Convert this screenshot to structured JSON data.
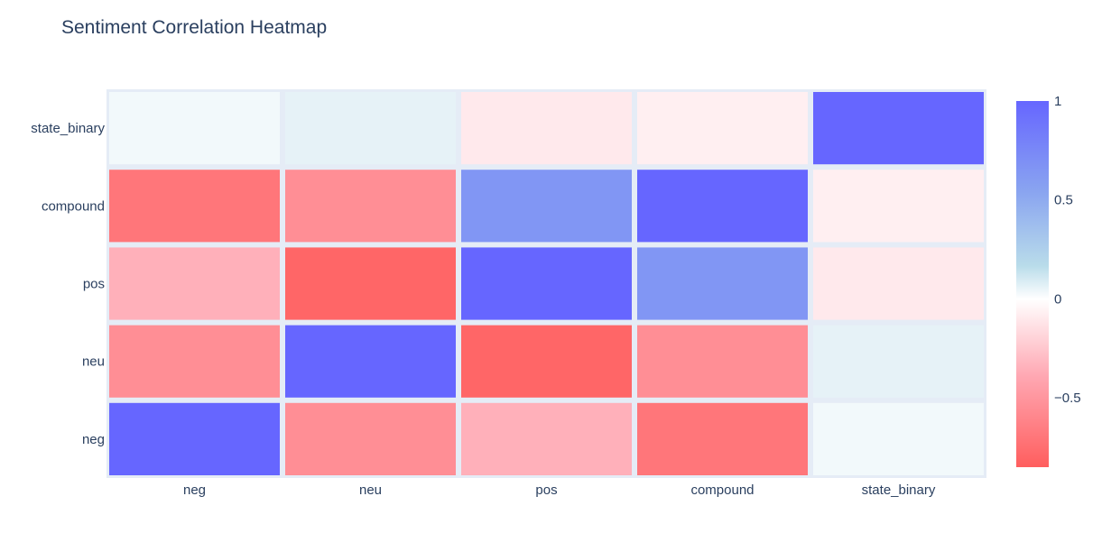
{
  "chart_data": {
    "type": "heatmap",
    "title": "Sentiment Correlation Heatmap",
    "x_categories": [
      "neg",
      "neu",
      "pos",
      "compound",
      "state_binary"
    ],
    "y_categories": [
      "neg",
      "neu",
      "pos",
      "compound",
      "state_binary"
    ],
    "z": [
      [
        1.0,
        -0.55,
        -0.35,
        -0.7,
        0.03
      ],
      [
        -0.55,
        1.0,
        -0.8,
        -0.55,
        0.06
      ],
      [
        -0.35,
        -0.8,
        1.0,
        0.65,
        -0.1
      ],
      [
        -0.7,
        -0.55,
        0.65,
        1.0,
        -0.07
      ],
      [
        0.03,
        0.06,
        -0.1,
        -0.07,
        1.0
      ]
    ],
    "zmin": -0.85,
    "zmax": 1.0,
    "colorscale": [
      [
        0.0,
        "#ff5e5e"
      ],
      [
        0.25,
        "#ffa8b3"
      ],
      [
        0.459,
        "#ffffff"
      ],
      [
        0.55,
        "#b9dcea"
      ],
      [
        0.75,
        "#8aa5f0"
      ],
      [
        1.0,
        "#6666ff"
      ]
    ],
    "colorbar_ticks": [
      "1",
      "0.5",
      "0",
      "−0.5"
    ],
    "colorbar_tick_values": [
      1,
      0.5,
      0,
      -0.5
    ],
    "background_color": "#e5ecf6",
    "gap_color": "#e5ecf6",
    "text_color": "#2a3f5f"
  }
}
